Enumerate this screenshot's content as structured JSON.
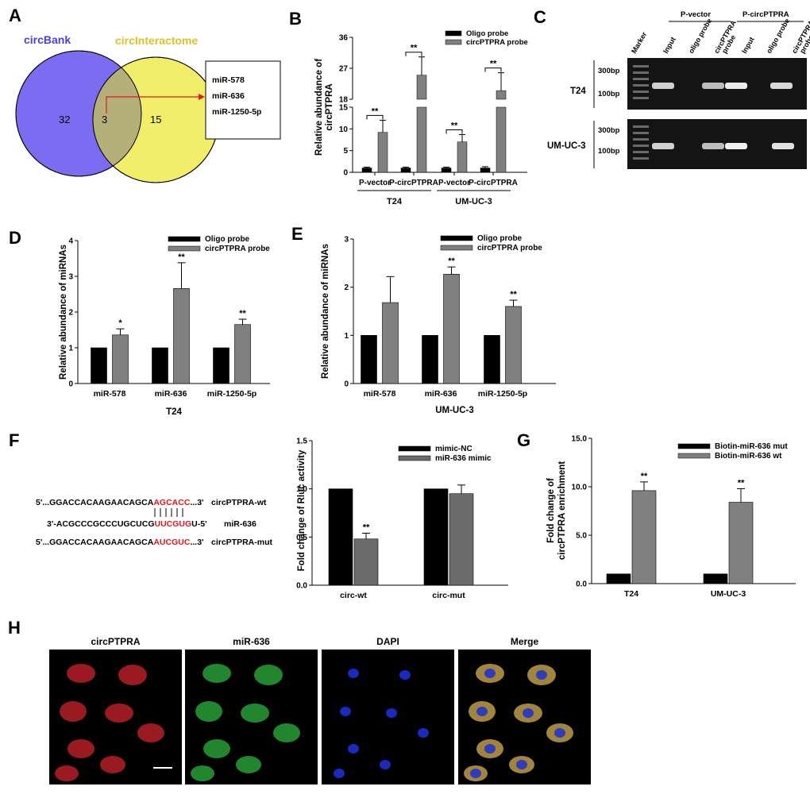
{
  "panels": {
    "A": "A",
    "B": "B",
    "C": "C",
    "D": "D",
    "E": "E",
    "F": "F",
    "G": "G",
    "H": "H"
  },
  "venn": {
    "left_label": "circBank",
    "right_label": "circInteractome",
    "left_count": "32",
    "overlap_count": "3",
    "right_count": "15",
    "overlap_list": [
      "miR-578",
      "miR-636",
      "miR-1250-5p"
    ],
    "left_color": "#7b6cf2",
    "right_color": "#f2ee6a",
    "overlap_color": "#b5b07a"
  },
  "gel": {
    "group_labels": [
      "P-vector",
      "P-circPTPRA"
    ],
    "lane_labels": [
      "Marker",
      "Input",
      "oligo probe",
      "circPTPRA probe",
      "Input",
      "oligo probe",
      "circPTPRA probe"
    ],
    "rows": [
      {
        "label": "T24",
        "markers": [
          "300bp",
          "100bp"
        ]
      },
      {
        "label": "UM-UC-3",
        "markers": [
          "300bp",
          "100bp"
        ]
      }
    ]
  },
  "fluorescence": {
    "channels": [
      "circPTPRA",
      "miR-636",
      "DAPI",
      "Merge"
    ],
    "colors": [
      "#c0202a",
      "#2aa83a",
      "#1c2fd0",
      "#c9a64e"
    ]
  },
  "sequences": {
    "rows": [
      {
        "prefix": "5'...GGACCACAAGAACAGCA",
        "highlight": "AGCACC",
        "suffix": "...3'",
        "name": "circPTPRA-wt"
      },
      {
        "prefix": "3'-ACGCCCGCCCUGCUCG",
        "highlight": "UUCGUG",
        "suffix": "U-5'",
        "name": "miR-636"
      },
      {
        "prefix": "5'...GGACCACAAGAACAGCA",
        "highlight": "AUCGUC",
        "suffix": "...3'",
        "name": "circPTPRA-mut"
      }
    ],
    "highlight_color": "#e8141c"
  },
  "chart_data": [
    {
      "panel": "B",
      "type": "bar",
      "categories": [
        "P-vector",
        "P-circPTPRA",
        "P-vector",
        "P-circPTPRA"
      ],
      "groups": [
        {
          "label": "T24",
          "span": [
            0,
            1
          ]
        },
        {
          "label": "UM-UC-3",
          "span": [
            2,
            3
          ]
        }
      ],
      "ylabel": "Relative abundance of circPTPRA",
      "yaxis_broken": true,
      "lower_ticks": [
        0,
        5,
        10,
        15
      ],
      "upper_ticks": [
        18,
        27,
        36
      ],
      "series": [
        {
          "name": "Oligo probe",
          "color": "#000000",
          "values": [
            1,
            1,
            1,
            1
          ],
          "errors": [
            0.2,
            0.2,
            0.2,
            0.3
          ]
        },
        {
          "name": "circPTPRA probe",
          "color": "#808080",
          "values": [
            9.2,
            25,
            7,
            20.5
          ],
          "errors": [
            2.8,
            5.3,
            1.7,
            5.2
          ]
        }
      ],
      "significance": [
        "**",
        "**",
        "**",
        "**"
      ]
    },
    {
      "panel": "D",
      "type": "bar",
      "categories": [
        "miR-578",
        "miR-636",
        "miR-1250-5p"
      ],
      "xlabel": "T24",
      "ylabel": "Relative abundance of miRNAs",
      "ylim": [
        0,
        4
      ],
      "yticks": [
        0,
        1,
        2,
        3,
        4
      ],
      "series": [
        {
          "name": "Oligo probe",
          "color": "#000000",
          "values": [
            1,
            1,
            1
          ]
        },
        {
          "name": "circPTPRA probe",
          "color": "#808080",
          "values": [
            1.36,
            2.66,
            1.65
          ],
          "errors": [
            0.17,
            0.72,
            0.15
          ]
        }
      ],
      "significance": [
        "*",
        "**",
        "**"
      ]
    },
    {
      "panel": "E",
      "type": "bar",
      "categories": [
        "miR-578",
        "miR-636",
        "miR-1250-5p"
      ],
      "xlabel": "UM-UC-3",
      "ylabel": "Relative abundance of miRNAs",
      "ylim": [
        0,
        3
      ],
      "yticks": [
        0,
        1,
        2,
        3
      ],
      "series": [
        {
          "name": "Oligo probe",
          "color": "#000000",
          "values": [
            1,
            1,
            1
          ]
        },
        {
          "name": "circPTPRA probe",
          "color": "#808080",
          "values": [
            1.68,
            2.27,
            1.6
          ],
          "errors": [
            0.54,
            0.15,
            0.13
          ]
        }
      ],
      "significance": [
        "",
        "**",
        "**"
      ]
    },
    {
      "panel": "F",
      "type": "bar",
      "categories": [
        "circ-wt",
        "circ-mut"
      ],
      "ylabel": "Fold change of Rluc activity",
      "ylim": [
        0,
        1.5
      ],
      "yticks": [
        "0.0",
        "0.5",
        "1.0",
        "1.5"
      ],
      "series": [
        {
          "name": "mimic-NC",
          "color": "#000000",
          "values": [
            1,
            1
          ]
        },
        {
          "name": "miR-636 mimic",
          "color": "#6b6b6b",
          "values": [
            0.48,
            0.95
          ],
          "errors": [
            0.06,
            0.09
          ]
        }
      ],
      "significance": [
        "**",
        ""
      ]
    },
    {
      "panel": "G",
      "type": "bar",
      "categories": [
        "T24",
        "UM-UC-3"
      ],
      "ylabel": "Fold change of circPTPRA enrichment",
      "ylim": [
        0,
        15
      ],
      "yticks": [
        "0.0",
        "5.0",
        "10.0",
        "15.0"
      ],
      "series": [
        {
          "name": "Biotin-miR-636 mut",
          "color": "#000000",
          "values": [
            1,
            1
          ]
        },
        {
          "name": "Biotin-miR-636 wt",
          "color": "#808080",
          "values": [
            9.6,
            8.4
          ],
          "errors": [
            0.9,
            1.4
          ]
        }
      ],
      "significance": [
        "**",
        "**"
      ]
    }
  ]
}
